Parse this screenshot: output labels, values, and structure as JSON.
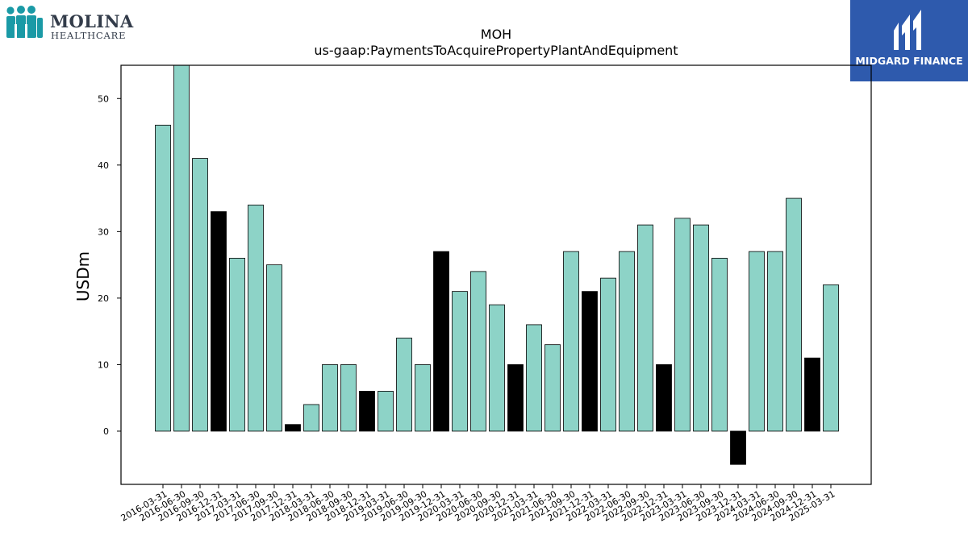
{
  "logos": {
    "left": {
      "name": "MOLINA",
      "sub": "HEALTHCARE",
      "registered": "®",
      "color": "#1a9aa6"
    },
    "right": {
      "name": "MIDGARD FINANCE",
      "background": "#2e5aad"
    }
  },
  "chart_data": {
    "type": "bar",
    "title": "MOH",
    "subtitle": "us-gaap:PaymentsToAcquirePropertyPlantAndEquipment",
    "xlabel": "",
    "ylabel": "USDm",
    "ylim": [
      -8,
      55
    ],
    "yticks": [
      0,
      10,
      20,
      30,
      40,
      50
    ],
    "grid": false,
    "categories": [
      "2016-03-31",
      "2016-06-30",
      "2016-09-30",
      "2016-12-31",
      "2017-03-31",
      "2017-06-30",
      "2017-09-30",
      "2017-12-31",
      "2018-03-31",
      "2018-06-30",
      "2018-09-30",
      "2018-12-31",
      "2019-03-31",
      "2019-06-30",
      "2019-09-30",
      "2019-12-31",
      "2020-03-31",
      "2020-06-30",
      "2020-09-30",
      "2020-12-31",
      "2021-03-31",
      "2021-06-30",
      "2021-09-30",
      "2021-12-31",
      "2022-03-31",
      "2022-06-30",
      "2022-09-30",
      "2022-12-31",
      "2023-03-31",
      "2023-06-30",
      "2023-09-30",
      "2023-12-31",
      "2024-03-31",
      "2024-06-30",
      "2024-09-30",
      "2024-12-31",
      "2025-03-31"
    ],
    "values": [
      46,
      55,
      41,
      33,
      26,
      34,
      25,
      1,
      4,
      10,
      10,
      6,
      6,
      14,
      10,
      27,
      21,
      24,
      19,
      10,
      16,
      13,
      27,
      21,
      23,
      27,
      31,
      10,
      32,
      31,
      26,
      -5,
      27,
      27,
      35,
      11,
      22
    ],
    "colors": {
      "quarter": "#8dd3c7",
      "year_end": "#000000",
      "edge": "#000000"
    }
  }
}
